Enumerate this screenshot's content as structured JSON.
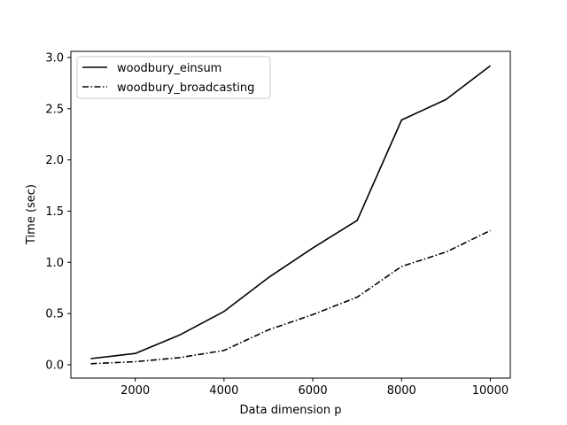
{
  "chart_data": {
    "type": "line",
    "title": "",
    "xlabel": "Data dimension p",
    "ylabel": "Time (sec)",
    "xlim": [
      550,
      10450
    ],
    "ylim": [
      -0.13,
      3.06
    ],
    "xticks": [
      2000,
      4000,
      6000,
      8000,
      10000
    ],
    "xtick_labels": [
      "2000",
      "4000",
      "6000",
      "8000",
      "10000"
    ],
    "yticks": [
      0.0,
      0.5,
      1.0,
      1.5,
      2.0,
      2.5,
      3.0
    ],
    "ytick_labels": [
      "0.0",
      "0.5",
      "1.0",
      "1.5",
      "2.0",
      "2.5",
      "3.0"
    ],
    "grid": false,
    "legend_position": "top-left",
    "x": [
      1000,
      2000,
      3000,
      4000,
      5000,
      6000,
      7000,
      8000,
      9000,
      10000
    ],
    "series": [
      {
        "name": "woodbury_einsum",
        "linestyle": "solid",
        "color": "#000000",
        "values": [
          0.06,
          0.11,
          0.29,
          0.52,
          0.85,
          1.14,
          1.41,
          2.39,
          2.59,
          2.92
        ]
      },
      {
        "name": "woodbury_broadcasting",
        "linestyle": "dashdot",
        "color": "#000000",
        "values": [
          0.01,
          0.03,
          0.07,
          0.14,
          0.34,
          0.49,
          0.66,
          0.96,
          1.1,
          1.31
        ]
      }
    ]
  }
}
